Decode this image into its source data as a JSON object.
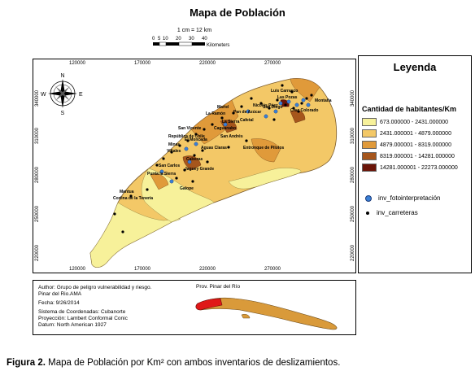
{
  "title": "Mapa de Población",
  "scale": {
    "ratio": "1 cm = 12 km",
    "ticks": [
      "0",
      "5",
      "10",
      "20",
      "30",
      "40"
    ],
    "unit": "Kilometers"
  },
  "axes": {
    "x_ticks": [
      "120000",
      "170000",
      "220000",
      "270000"
    ],
    "y_ticks": [
      "340000",
      "310000",
      "280000",
      "250000",
      "220000"
    ]
  },
  "compass": {
    "n": "N",
    "s": "S",
    "e": "E",
    "w": "W"
  },
  "places": [
    "Luis Carrasco",
    "Las Pozas",
    "Montaña",
    "San Diego",
    "Mariel",
    "La Ramón",
    "Pan de Azúcar",
    "Nicolás Páez",
    "La Sierra",
    "Cafetal",
    "Caguanabo",
    "San Vicente",
    "República de Chile",
    "El Moncada",
    "Minas",
    "Viñales",
    "San Andrés",
    "Aguas Claras",
    "Entronque de Pilotos",
    "Cabezas",
    "San Carlos",
    "Jaguey Grande",
    "Punta la Sierra",
    "Galope",
    "Mantua",
    "Cortina de la Tenería",
    "Cruz Colorado"
  ],
  "legend": {
    "title": "Leyenda",
    "subtitle": "Cantidad de habitantes/Km",
    "classes": [
      {
        "label": "673.000000 - 2431.000000",
        "color": "#f7f19a"
      },
      {
        "label": "2431.000001 - 4879.000000",
        "color": "#f3c867"
      },
      {
        "label": "4879.000001 - 8319.000000",
        "color": "#e09a3a"
      },
      {
        "label": "8319.000001 - 14281.000000",
        "color": "#a6561c"
      },
      {
        "label": "14281.000001 - 22273.000000",
        "color": "#6b1408"
      }
    ],
    "points": [
      {
        "label": "inv_fotointerpretación",
        "icon": "blue-dot-icon",
        "color": "#3a7fd5"
      },
      {
        "label": "inv_carreteras",
        "icon": "black-dot-icon",
        "color": "#000000"
      }
    ]
  },
  "info": {
    "author": "Author: Grupo de peligro vulnerabilidad y riesgo.",
    "org": "Pinar del Rio.AMA",
    "date": "Fecha: 9/26/2014",
    "coord": "Sistema de Coordenadas: Cubanorte",
    "proj": "Proyección: Lambert Conformal Conic",
    "datum": "Datum: North American 1927",
    "inset_title": "Prov. Pinar del Río"
  },
  "caption": {
    "label": "Figura 2.",
    "text": "Mapa de Población por  Km² con ambos inventarios de deslizamientos."
  }
}
